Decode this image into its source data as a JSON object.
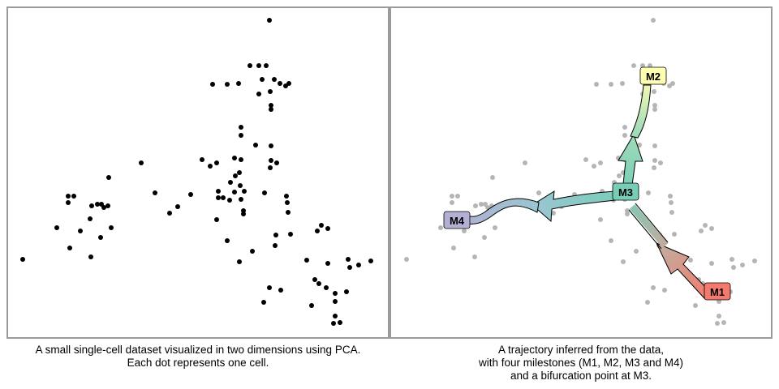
{
  "colors": {
    "cell_primary": "#000000",
    "cell_background": "#b5b5b5",
    "panel_border": "#9a9a9a",
    "M1": "#f47a6e",
    "M2": "#ffffb2",
    "M3": "#78cdb8",
    "M4": "#b2b0d3"
  },
  "captions": {
    "left": [
      "A small single-cell dataset visualized in two dimensions using PCA.",
      "Each dot represents one cell."
    ],
    "right": [
      "A trajectory inferred from the data,",
      "with four milestones (M1, M2, M3 and M4)",
      "and a bifurcation point at M3."
    ]
  },
  "milestones": [
    {
      "id": "M1",
      "label": "M1"
    },
    {
      "id": "M2",
      "label": "M2"
    },
    {
      "id": "M3",
      "label": "M3"
    },
    {
      "id": "M4",
      "label": "M4"
    }
  ],
  "transitions": [
    {
      "from": "M1",
      "to": "M3"
    },
    {
      "from": "M3",
      "to": "M2"
    },
    {
      "from": "M3",
      "to": "M4"
    }
  ],
  "chart_data": {
    "type": "scatter",
    "xlabel": "",
    "ylabel": "",
    "points": [
      [
        332,
        25
      ],
      [
        308,
        81
      ],
      [
        319,
        81
      ],
      [
        328,
        81
      ],
      [
        338,
        98
      ],
      [
        323,
        98
      ],
      [
        345,
        103
      ],
      [
        356,
        103
      ],
      [
        352,
        106
      ],
      [
        262,
        104
      ],
      [
        280,
        104
      ],
      [
        294,
        103
      ],
      [
        333,
        113
      ],
      [
        319,
        116
      ],
      [
        334,
        130
      ],
      [
        334,
        135
      ],
      [
        297,
        157
      ],
      [
        297,
        167
      ],
      [
        315,
        179
      ],
      [
        334,
        180
      ],
      [
        249,
        197
      ],
      [
        259,
        205
      ],
      [
        267,
        201
      ],
      [
        289,
        195
      ],
      [
        297,
        197
      ],
      [
        334,
        198
      ],
      [
        341,
        201
      ],
      [
        333,
        207
      ],
      [
        290,
        217
      ],
      [
        295,
        213
      ],
      [
        174,
        201
      ],
      [
        134,
        219
      ],
      [
        284,
        225
      ],
      [
        269,
        236
      ],
      [
        289,
        237
      ],
      [
        296,
        229
      ],
      [
        301,
        236
      ],
      [
        283,
        247
      ],
      [
        269,
        244
      ],
      [
        275,
        244
      ],
      [
        326,
        238
      ],
      [
        297,
        246
      ],
      [
        235,
        240
      ],
      [
        191,
        238
      ],
      [
        219,
        255
      ],
      [
        209,
        263
      ],
      [
        84,
        242
      ],
      [
        91,
        242
      ],
      [
        84,
        250
      ],
      [
        113,
        254
      ],
      [
        120,
        252
      ],
      [
        125,
        252
      ],
      [
        133,
        254
      ],
      [
        128,
        256
      ],
      [
        111,
        270
      ],
      [
        70,
        281
      ],
      [
        99,
        285
      ],
      [
        137,
        281
      ],
      [
        124,
        293
      ],
      [
        86,
        306
      ],
      [
        112,
        317
      ],
      [
        28,
        320
      ],
      [
        267,
        271
      ],
      [
        300,
        264
      ],
      [
        300,
        260
      ],
      [
        353,
        242
      ],
      [
        354,
        250
      ],
      [
        355,
        262
      ],
      [
        280,
        297
      ],
      [
        311,
        310
      ],
      [
        340,
        290
      ],
      [
        339,
        303
      ],
      [
        358,
        289
      ],
      [
        396,
        278
      ],
      [
        391,
        285
      ],
      [
        404,
        282
      ],
      [
        295,
        323
      ],
      [
        378,
        321
      ],
      [
        404,
        325
      ],
      [
        429,
        320
      ],
      [
        442,
        327
      ],
      [
        457,
        322
      ],
      [
        431,
        330
      ],
      [
        388,
        345
      ],
      [
        393,
        350
      ],
      [
        402,
        355
      ],
      [
        413,
        362
      ],
      [
        427,
        360
      ],
      [
        332,
        355
      ],
      [
        346,
        358
      ],
      [
        325,
        373
      ],
      [
        384,
        377
      ],
      [
        413,
        372
      ],
      [
        413,
        390
      ],
      [
        419,
        398
      ],
      [
        411,
        399
      ]
    ]
  }
}
